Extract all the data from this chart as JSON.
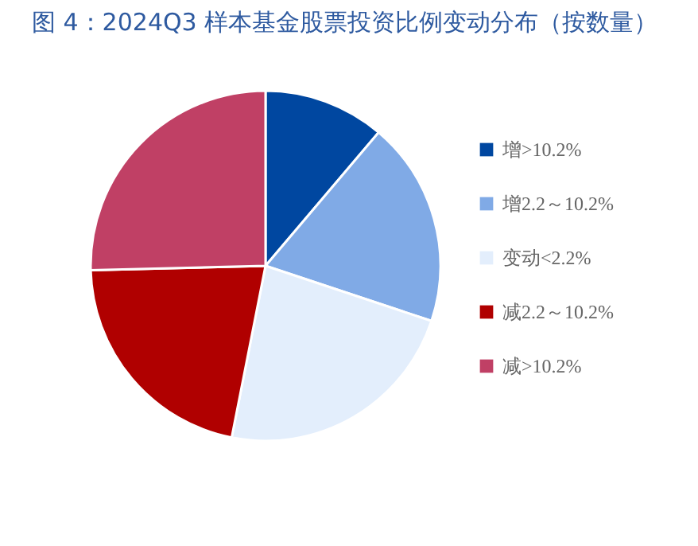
{
  "chart_data": {
    "type": "pie",
    "title": "图 4：2024Q3 样本基金股票投资比例变动分布（按数量）",
    "categories": [
      "增>10.2%",
      "增2.2～10.2%",
      "变动<2.2%",
      "减2.2～10.2%",
      "减>10.2%"
    ],
    "values": [
      11.2,
      18.9,
      23.0,
      21.5,
      25.4
    ],
    "colors": [
      "#0047a0",
      "#80aae6",
      "#e3eefc",
      "#b00000",
      "#c04065"
    ],
    "legend": "right"
  }
}
